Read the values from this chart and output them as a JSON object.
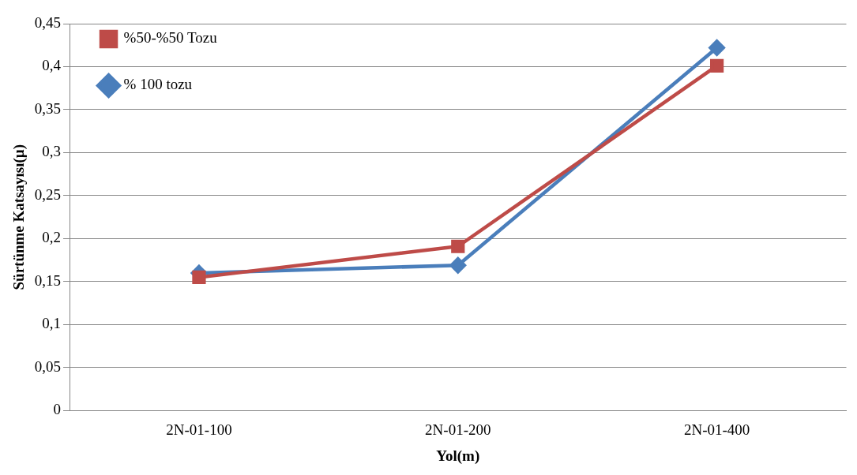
{
  "chart_data": {
    "type": "line",
    "xlabel": "Yol(m)",
    "ylabel": "Sürtünme Katsayısı(µ)",
    "categories": [
      "2N-01-100",
      "2N-01-200",
      "2N-01-400"
    ],
    "series": [
      {
        "name": "% 100 tozu",
        "color": "#4a7ebb",
        "marker": "diamond",
        "values": [
          0.16,
          0.169,
          0.422
        ]
      },
      {
        "name": "%50-%50 Tozu",
        "color": "#be4b48",
        "marker": "square",
        "values": [
          0.155,
          0.191,
          0.401
        ]
      }
    ],
    "ylim": [
      0,
      0.45
    ],
    "yticks": [
      0,
      {
        "value": 0.05,
        "label": "0,05"
      },
      {
        "value": 0.1,
        "label": "0,1"
      },
      {
        "value": 0.15,
        "label": "0,15"
      },
      {
        "value": 0.2,
        "label": "0,2"
      },
      {
        "value": 0.25,
        "label": "0,25"
      },
      {
        "value": 0.3,
        "label": "0,3"
      },
      {
        "value": 0.35,
        "label": "0,35"
      },
      {
        "value": 0.4,
        "label": "0,4"
      },
      {
        "value": 0.45,
        "label": "0,45"
      }
    ],
    "grid": "y",
    "legend": "top left",
    "line_style": "solid"
  }
}
